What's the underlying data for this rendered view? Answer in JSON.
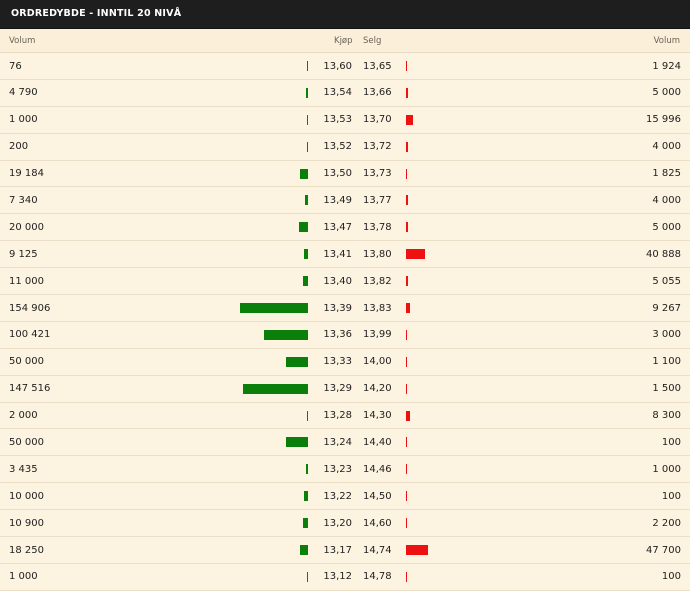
{
  "title": "ORDREDYBDE - INNTIL 20 NIVÅ",
  "columns": {
    "buy_volume": "Volum",
    "bid": "Kjøp",
    "ask": "Selg",
    "sell_volume": "Volum"
  },
  "colors": {
    "buy_bar": "#0a7f0a",
    "sell_bar": "#ee1111",
    "header_bg": "#1e1e1e",
    "row_bg": "#fdf3e1"
  },
  "rows": [
    {
      "buy_volume": "76",
      "bid": "13,60",
      "ask": "13,65",
      "sell_volume": "1 924",
      "buy_qty": 76,
      "sell_qty": 1924
    },
    {
      "buy_volume": "4 790",
      "bid": "13,54",
      "ask": "13,66",
      "sell_volume": "5 000",
      "buy_qty": 4790,
      "sell_qty": 5000
    },
    {
      "buy_volume": "1 000",
      "bid": "13,53",
      "ask": "13,70",
      "sell_volume": "15 996",
      "buy_qty": 1000,
      "sell_qty": 15996
    },
    {
      "buy_volume": "200",
      "bid": "13,52",
      "ask": "13,72",
      "sell_volume": "4 000",
      "buy_qty": 200,
      "sell_qty": 4000
    },
    {
      "buy_volume": "19 184",
      "bid": "13,50",
      "ask": "13,73",
      "sell_volume": "1 825",
      "buy_qty": 19184,
      "sell_qty": 1825
    },
    {
      "buy_volume": "7 340",
      "bid": "13,49",
      "ask": "13,77",
      "sell_volume": "4 000",
      "buy_qty": 7340,
      "sell_qty": 4000
    },
    {
      "buy_volume": "20 000",
      "bid": "13,47",
      "ask": "13,78",
      "sell_volume": "5 000",
      "buy_qty": 20000,
      "sell_qty": 5000
    },
    {
      "buy_volume": "9 125",
      "bid": "13,41",
      "ask": "13,80",
      "sell_volume": "40 888",
      "buy_qty": 9125,
      "sell_qty": 40888
    },
    {
      "buy_volume": "11 000",
      "bid": "13,40",
      "ask": "13,82",
      "sell_volume": "5 055",
      "buy_qty": 11000,
      "sell_qty": 5055
    },
    {
      "buy_volume": "154 906",
      "bid": "13,39",
      "ask": "13,83",
      "sell_volume": "9 267",
      "buy_qty": 154906,
      "sell_qty": 9267
    },
    {
      "buy_volume": "100 421",
      "bid": "13,36",
      "ask": "13,99",
      "sell_volume": "3 000",
      "buy_qty": 100421,
      "sell_qty": 3000
    },
    {
      "buy_volume": "50 000",
      "bid": "13,33",
      "ask": "14,00",
      "sell_volume": "1 100",
      "buy_qty": 50000,
      "sell_qty": 1100
    },
    {
      "buy_volume": "147 516",
      "bid": "13,29",
      "ask": "14,20",
      "sell_volume": "1 500",
      "buy_qty": 147516,
      "sell_qty": 1500
    },
    {
      "buy_volume": "2 000",
      "bid": "13,28",
      "ask": "14,30",
      "sell_volume": "8 300",
      "buy_qty": 2000,
      "sell_qty": 8300
    },
    {
      "buy_volume": "50 000",
      "bid": "13,24",
      "ask": "14,40",
      "sell_volume": "100",
      "buy_qty": 50000,
      "sell_qty": 100
    },
    {
      "buy_volume": "3 435",
      "bid": "13,23",
      "ask": "14,46",
      "sell_volume": "1 000",
      "buy_qty": 3435,
      "sell_qty": 1000
    },
    {
      "buy_volume": "10 000",
      "bid": "13,22",
      "ask": "14,50",
      "sell_volume": "100",
      "buy_qty": 10000,
      "sell_qty": 100
    },
    {
      "buy_volume": "10 900",
      "bid": "13,20",
      "ask": "14,60",
      "sell_volume": "2 200",
      "buy_qty": 10900,
      "sell_qty": 2200
    },
    {
      "buy_volume": "18 250",
      "bid": "13,17",
      "ask": "14,74",
      "sell_volume": "47 700",
      "buy_qty": 18250,
      "sell_qty": 47700
    },
    {
      "buy_volume": "1 000",
      "bid": "13,12",
      "ask": "14,78",
      "sell_volume": "100",
      "buy_qty": 1000,
      "sell_qty": 100
    }
  ]
}
